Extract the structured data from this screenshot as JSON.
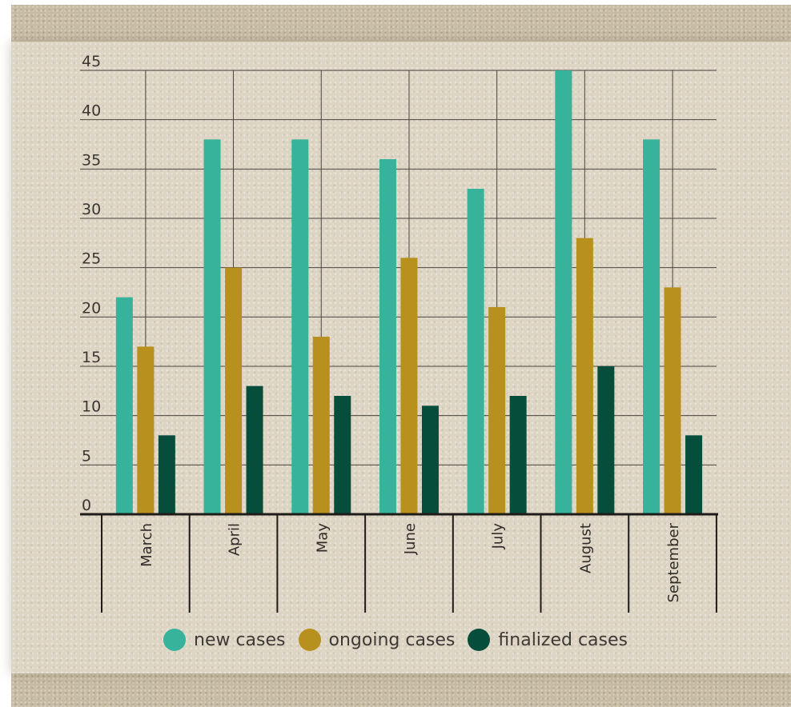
{
  "chart_data": {
    "type": "bar",
    "categories": [
      "March",
      "April",
      "May",
      "June",
      "July",
      "August",
      "September"
    ],
    "series": [
      {
        "name": "new cases",
        "color": "#36b39a",
        "values": [
          22,
          38,
          38,
          36,
          33,
          45,
          38
        ]
      },
      {
        "name": "ongoing cases",
        "color": "#b8901d",
        "values": [
          17,
          25,
          18,
          26,
          21,
          28,
          23
        ]
      },
      {
        "name": "finalized cases",
        "color": "#064d3c",
        "values": [
          8,
          13,
          12,
          11,
          12,
          15,
          8
        ]
      }
    ],
    "ylim": [
      0,
      45
    ],
    "yticks": [
      0,
      5,
      10,
      15,
      20,
      25,
      30,
      35,
      40,
      45
    ],
    "grid": true,
    "legend_position": "bottom"
  }
}
